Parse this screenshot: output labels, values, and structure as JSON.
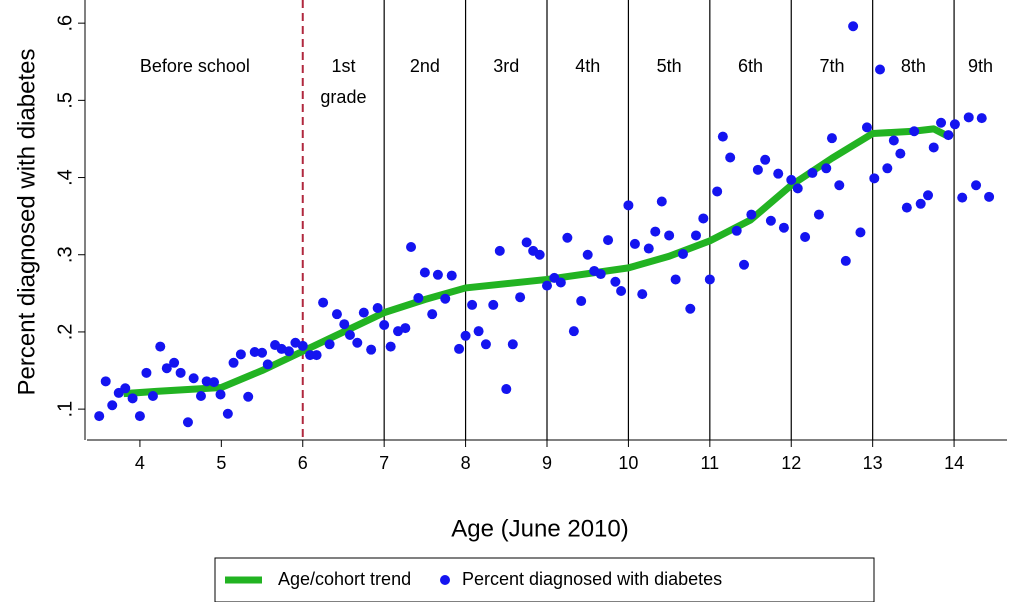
{
  "chart_data": {
    "type": "scatter",
    "x_label": "Age (June 2010)",
    "y_label": "Percent diagnosed with diabetes",
    "xlim": [
      3.35,
      14.65
    ],
    "ylim": [
      0.06,
      0.63
    ],
    "xticks": [
      4,
      5,
      6,
      7,
      8,
      9,
      10,
      11,
      12,
      13,
      14
    ],
    "yticks": [
      {
        "value": 0.1,
        "label": ".1"
      },
      {
        "value": 0.2,
        "label": ".2"
      },
      {
        "value": 0.3,
        "label": ".3"
      },
      {
        "value": 0.4,
        "label": ".4"
      },
      {
        "value": 0.5,
        "label": ".5"
      },
      {
        "value": 0.6,
        "label": ".6"
      }
    ],
    "vlines": [
      {
        "x": 6,
        "color": "#b0283e",
        "dashed": true
      },
      {
        "x": 7,
        "color": "#000000",
        "dashed": false
      },
      {
        "x": 8,
        "color": "#000000",
        "dashed": false
      },
      {
        "x": 9,
        "color": "#000000",
        "dashed": false
      },
      {
        "x": 10,
        "color": "#000000",
        "dashed": false
      },
      {
        "x": 11,
        "color": "#000000",
        "dashed": false
      },
      {
        "x": 12,
        "color": "#000000",
        "dashed": false
      },
      {
        "x": 13,
        "color": "#000000",
        "dashed": false
      },
      {
        "x": 14,
        "color": "#000000",
        "dashed": false
      }
    ],
    "grade_labels": [
      [
        "Before school"
      ],
      [
        "1st",
        "grade"
      ],
      [
        "2nd"
      ],
      [
        "3rd"
      ],
      [
        "4th"
      ],
      [
        "5th"
      ],
      [
        "6th"
      ],
      [
        "7th"
      ],
      [
        "8th"
      ],
      [
        "9th"
      ]
    ],
    "series": [
      {
        "name": "Age/cohort trend",
        "type": "line",
        "color": "#22b322",
        "x": [
          3.8,
          4.2,
          5,
          5.5,
          6,
          6.5,
          7,
          7.5,
          8,
          9,
          10,
          10.5,
          11,
          11.5,
          12,
          12.5,
          13,
          13.5,
          13.75,
          13.9
        ],
        "values": [
          0.12,
          0.123,
          0.128,
          0.15,
          0.175,
          0.2,
          0.225,
          0.242,
          0.257,
          0.268,
          0.283,
          0.298,
          0.318,
          0.345,
          0.39,
          0.425,
          0.457,
          0.46,
          0.463,
          0.455
        ]
      },
      {
        "name": "Percent diagnosed with diabetes",
        "type": "scatter",
        "color": "#1414f0",
        "x": [
          3.5,
          3.58,
          3.66,
          3.74,
          3.82,
          3.91,
          4.0,
          4.08,
          4.16,
          4.25,
          4.33,
          4.42,
          4.5,
          4.59,
          4.66,
          4.75,
          4.82,
          4.91,
          4.99,
          5.08,
          5.15,
          5.24,
          5.33,
          5.41,
          5.5,
          5.57,
          5.66,
          5.74,
          5.83,
          5.91,
          6.0,
          6.09,
          6.17,
          6.25,
          6.33,
          6.42,
          6.51,
          6.58,
          6.67,
          6.75,
          6.84,
          6.92,
          7.0,
          7.08,
          7.17,
          7.26,
          7.33,
          7.42,
          7.5,
          7.59,
          7.66,
          7.75,
          7.83,
          7.92,
          8.0,
          8.08,
          8.16,
          8.25,
          8.34,
          8.42,
          8.5,
          8.58,
          8.67,
          8.75,
          8.83,
          8.91,
          9.0,
          9.09,
          9.17,
          9.25,
          9.33,
          9.42,
          9.5,
          9.58,
          9.66,
          9.75,
          9.84,
          9.91,
          10.0,
          10.08,
          10.17,
          10.25,
          10.33,
          10.41,
          10.5,
          10.58,
          10.67,
          10.76,
          10.83,
          10.92,
          11.0,
          11.09,
          11.16,
          11.25,
          11.33,
          11.42,
          11.51,
          11.59,
          11.68,
          11.75,
          11.84,
          11.91,
          12.0,
          12.08,
          12.17,
          12.26,
          12.34,
          12.43,
          12.5,
          12.59,
          12.67,
          12.76,
          12.85,
          12.93,
          13.02,
          13.09,
          13.18,
          13.26,
          13.34,
          13.42,
          13.51,
          13.59,
          13.68,
          13.75,
          13.84,
          13.93,
          14.01,
          14.1,
          14.18,
          14.27,
          14.34,
          14.43
        ],
        "values": [
          0.091,
          0.136,
          0.105,
          0.121,
          0.127,
          0.114,
          0.091,
          0.147,
          0.117,
          0.181,
          0.153,
          0.16,
          0.147,
          0.083,
          0.14,
          0.117,
          0.136,
          0.135,
          0.119,
          0.094,
          0.16,
          0.171,
          0.116,
          0.174,
          0.173,
          0.158,
          0.183,
          0.178,
          0.175,
          0.186,
          0.182,
          0.17,
          0.17,
          0.238,
          0.184,
          0.223,
          0.21,
          0.196,
          0.186,
          0.225,
          0.177,
          0.231,
          0.209,
          0.181,
          0.201,
          0.205,
          0.31,
          0.244,
          0.277,
          0.223,
          0.274,
          0.243,
          0.273,
          0.178,
          0.195,
          0.235,
          0.201,
          0.184,
          0.235,
          0.305,
          0.126,
          0.184,
          0.245,
          0.316,
          0.305,
          0.3,
          0.26,
          0.27,
          0.264,
          0.322,
          0.201,
          0.24,
          0.3,
          0.279,
          0.275,
          0.319,
          0.265,
          0.253,
          0.364,
          0.314,
          0.249,
          0.308,
          0.33,
          0.369,
          0.325,
          0.268,
          0.301,
          0.23,
          0.325,
          0.347,
          0.268,
          0.382,
          0.453,
          0.426,
          0.331,
          0.287,
          0.352,
          0.41,
          0.423,
          0.344,
          0.405,
          0.335,
          0.397,
          0.386,
          0.323,
          0.406,
          0.352,
          0.412,
          0.451,
          0.39,
          0.292,
          0.596,
          0.329,
          0.465,
          0.399,
          0.54,
          0.412,
          0.448,
          0.431,
          0.361,
          0.46,
          0.366,
          0.377,
          0.439,
          0.471,
          0.455,
          0.469,
          0.374,
          0.478,
          0.39,
          0.477,
          0.375
        ]
      }
    ]
  }
}
